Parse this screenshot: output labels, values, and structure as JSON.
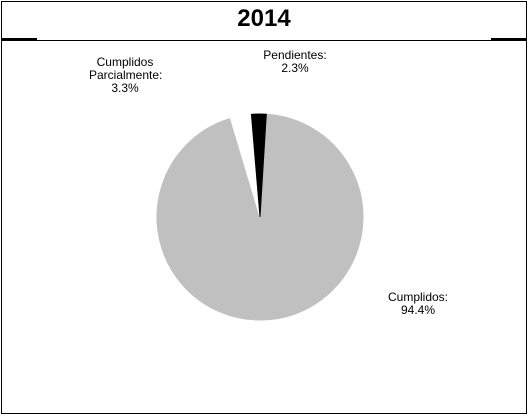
{
  "chart_data": {
    "type": "pie",
    "title": "2014",
    "slices": [
      {
        "label": "Cumplidos:",
        "percent_text": "94.4%",
        "value": 94.4,
        "color": "#c0c0c0"
      },
      {
        "label": "Cumplidos Parcialmente:",
        "percent_text": "3.3%",
        "value": 3.3,
        "color": "#ffffff"
      },
      {
        "label": "Pendientes:",
        "percent_text": "2.3%",
        "value": 2.3,
        "color": "#000000"
      }
    ]
  }
}
